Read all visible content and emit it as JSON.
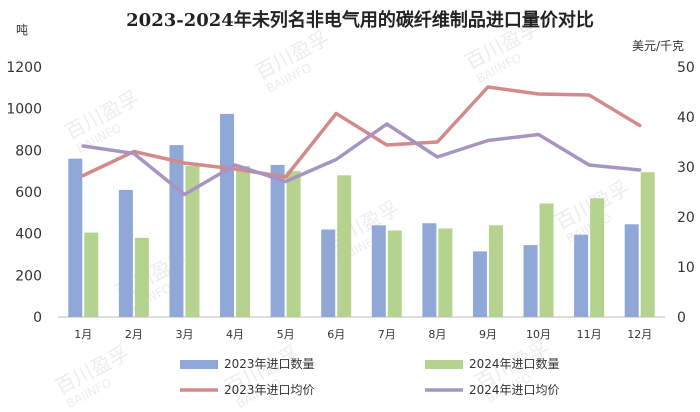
{
  "chart_data": {
    "type": "bar",
    "title": "2023-2024年未列名非电气用的碳纤维制品进口量价对比",
    "ylabel_left": "吨",
    "ylabel_right": "美元/千克",
    "ylim_left": [
      0,
      1200
    ],
    "yticks_left": [
      "0",
      "200",
      "400",
      "600",
      "800",
      "1000",
      "1200"
    ],
    "ylim_right": [
      0,
      50
    ],
    "yticks_right": [
      "0",
      "10",
      "20",
      "30",
      "40",
      "50"
    ],
    "categories": [
      "1月",
      "2月",
      "3月",
      "4月",
      "5月",
      "6月",
      "7月",
      "8月",
      "9月",
      "10月",
      "11月",
      "12月"
    ],
    "series": [
      {
        "name": "2023年进口数量",
        "type": "bar",
        "axis": "left",
        "color": "#8fa8d8",
        "values": [
          760,
          610,
          825,
          975,
          730,
          420,
          440,
          450,
          315,
          345,
          395,
          445
        ]
      },
      {
        "name": "2024年进口数量",
        "type": "bar",
        "axis": "left",
        "color": "#b5d38f",
        "values": [
          405,
          380,
          725,
          725,
          700,
          680,
          415,
          425,
          440,
          545,
          570,
          695
        ]
      },
      {
        "name": "2023年进口均价",
        "type": "line",
        "axis": "right",
        "color": "#d48a8a",
        "values": [
          28.3,
          33.1,
          30.8,
          29.6,
          28.0,
          40.7,
          34.4,
          35.0,
          46.0,
          44.6,
          44.4,
          38.3
        ]
      },
      {
        "name": "2024年进口均价",
        "type": "line",
        "axis": "right",
        "color": "#a695c2",
        "values": [
          34.2,
          32.7,
          24.5,
          30.4,
          27.1,
          31.5,
          38.6,
          32.0,
          35.3,
          36.5,
          30.4,
          29.4
        ]
      }
    ],
    "legend_position": "bottom",
    "grid": false
  },
  "watermark": {
    "line1": "百川盈孚",
    "line2": "BAIINFO"
  }
}
